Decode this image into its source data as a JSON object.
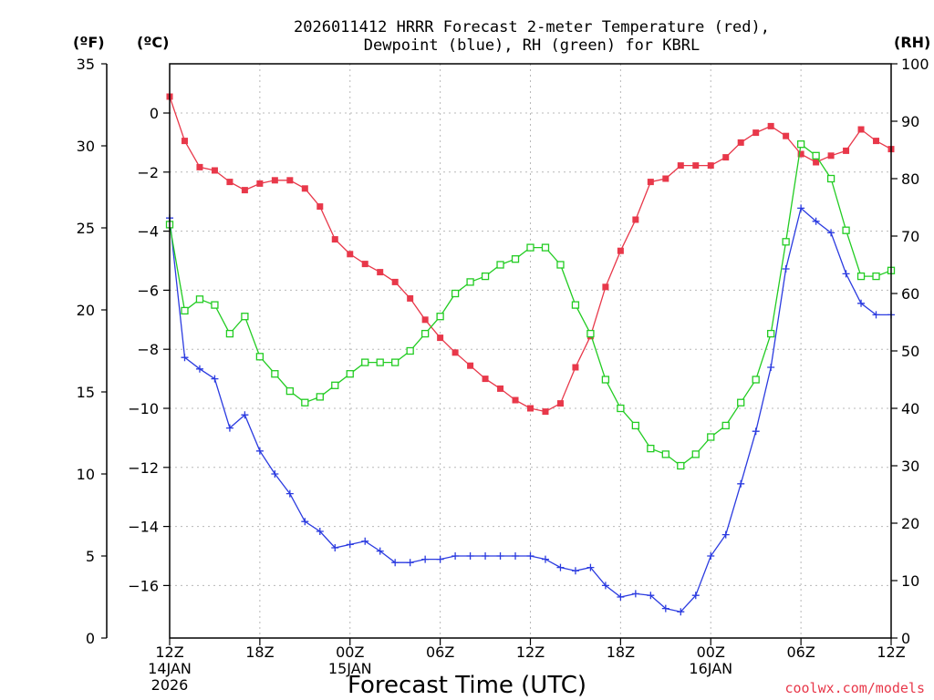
{
  "chart_data": {
    "type": "line",
    "title_line1": "2026011412 HRRR Forecast 2-meter Temperature (red),",
    "title_line2": "Dewpoint (blue), RH (green) for KBRL",
    "xlabel": "Forecast Time (UTC)",
    "credit": "coolwx.com/models",
    "left_outer_unit": "(ºF)",
    "left_inner_unit": "(ºC)",
    "right_unit": "(RH)",
    "fahrenheit_axis": {
      "range": [
        0,
        35
      ],
      "ticks": [
        0,
        5,
        10,
        15,
        20,
        25,
        30,
        35
      ]
    },
    "celsius_axis": {
      "ticks": [
        0,
        -2,
        -4,
        -6,
        -8,
        -10,
        -12,
        -14,
        -16
      ]
    },
    "rh_axis": {
      "range": [
        0,
        100
      ],
      "ticks": [
        0,
        10,
        20,
        30,
        40,
        50,
        60,
        70,
        80,
        90,
        100
      ]
    },
    "x_hours_range": [
      0,
      48
    ],
    "x_ticks": [
      {
        "hour": 0,
        "lines": [
          "12Z",
          "14JAN",
          "2026"
        ]
      },
      {
        "hour": 6,
        "lines": [
          "18Z"
        ]
      },
      {
        "hour": 12,
        "lines": [
          "00Z",
          "15JAN"
        ]
      },
      {
        "hour": 18,
        "lines": [
          "06Z"
        ]
      },
      {
        "hour": 24,
        "lines": [
          "12Z"
        ]
      },
      {
        "hour": 30,
        "lines": [
          "18Z"
        ]
      },
      {
        "hour": 36,
        "lines": [
          "00Z",
          "16JAN"
        ]
      },
      {
        "hour": 42,
        "lines": [
          "06Z"
        ]
      },
      {
        "hour": 48,
        "lines": [
          "12Z"
        ]
      }
    ],
    "grid": true,
    "series": [
      {
        "name": "Temperature",
        "unit": "F",
        "color": "#e8384a",
        "marker": "filled-square",
        "values": [
          33.0,
          30.3,
          28.7,
          28.5,
          27.8,
          27.3,
          27.7,
          27.9,
          27.9,
          27.4,
          26.3,
          24.3,
          23.4,
          22.8,
          22.3,
          21.7,
          20.7,
          19.4,
          18.3,
          17.4,
          16.6,
          15.8,
          15.2,
          14.5,
          14.0,
          13.8,
          14.3,
          16.5,
          18.4,
          21.4,
          23.6,
          25.5,
          27.8,
          28.0,
          28.8,
          28.8,
          28.8,
          29.3,
          30.2,
          30.8,
          31.2,
          30.6,
          29.5,
          29.0,
          29.4,
          29.7,
          31.0,
          30.3,
          29.8
        ]
      },
      {
        "name": "Dewpoint",
        "unit": "F",
        "color": "#2b3be0",
        "marker": "plus",
        "values": [
          25.6,
          17.1,
          16.4,
          15.8,
          12.8,
          13.6,
          11.4,
          10.0,
          8.8,
          7.1,
          6.5,
          5.5,
          5.7,
          5.9,
          5.3,
          4.6,
          4.6,
          4.8,
          4.8,
          5.0,
          5.0,
          5.0,
          5.0,
          5.0,
          5.0,
          4.8,
          4.3,
          4.1,
          4.3,
          3.2,
          2.5,
          2.7,
          2.6,
          1.8,
          1.6,
          2.6,
          5.0,
          6.3,
          9.4,
          12.6,
          16.5,
          22.5,
          26.2,
          25.4,
          24.7,
          22.2,
          20.4,
          19.7,
          19.7
        ]
      },
      {
        "name": "RH",
        "unit": "%",
        "color": "#22cc22",
        "marker": "open-square",
        "values": [
          72,
          57,
          59,
          58,
          53,
          56,
          49,
          46,
          43,
          41,
          42,
          44,
          46,
          48,
          48,
          48,
          50,
          53,
          56,
          60,
          62,
          63,
          65,
          66,
          68,
          68,
          65,
          58,
          53,
          45,
          40,
          37,
          33,
          32,
          30,
          32,
          35,
          37,
          41,
          45,
          53,
          69,
          86,
          84,
          80,
          71,
          63,
          63,
          64
        ]
      }
    ]
  }
}
